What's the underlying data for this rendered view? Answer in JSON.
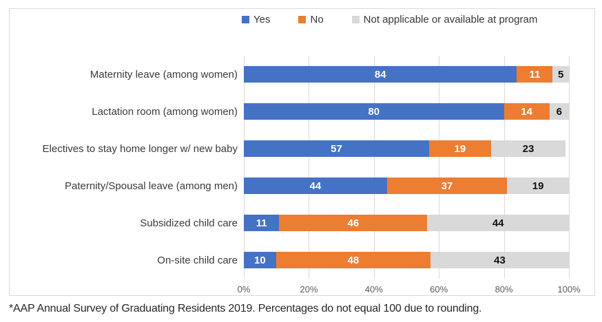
{
  "footnote": "*AAP Annual Survey of Graduating Residents 2019. Percentages do not equal 100 due to rounding.",
  "colors": {
    "yes": "#4472c4",
    "no": "#ed7d31",
    "not_applicable": "#d9d9d9",
    "gridline": "#d9d9d9",
    "tick_text": "#595959",
    "frame_border": "#d9d9d9"
  },
  "chart_data": {
    "type": "bar",
    "orientation": "horizontal",
    "stacked": true,
    "legend_position": "top",
    "grid": true,
    "xlim": [
      0,
      100
    ],
    "x_ticks": [
      "0%",
      "20%",
      "40%",
      "60%",
      "80%",
      "100%"
    ],
    "categories": [
      "Maternity leave (among women)",
      "Lactation room (among women)",
      "Electives to stay home longer w/ new baby",
      "Paternity/Spousal leave (among men)",
      "Subsidized child care",
      "On-site child care"
    ],
    "series": [
      {
        "name": "Yes",
        "color": "#4472c4",
        "label_color": "#ffffff",
        "values": [
          84,
          80,
          57,
          44,
          11,
          10
        ]
      },
      {
        "name": "No",
        "color": "#ed7d31",
        "label_color": "#ffffff",
        "values": [
          11,
          14,
          19,
          37,
          46,
          48
        ]
      },
      {
        "name": "Not applicable or available at program",
        "color": "#d9d9d9",
        "label_color": "#111111",
        "values": [
          5,
          6,
          23,
          19,
          44,
          43
        ]
      }
    ]
  }
}
